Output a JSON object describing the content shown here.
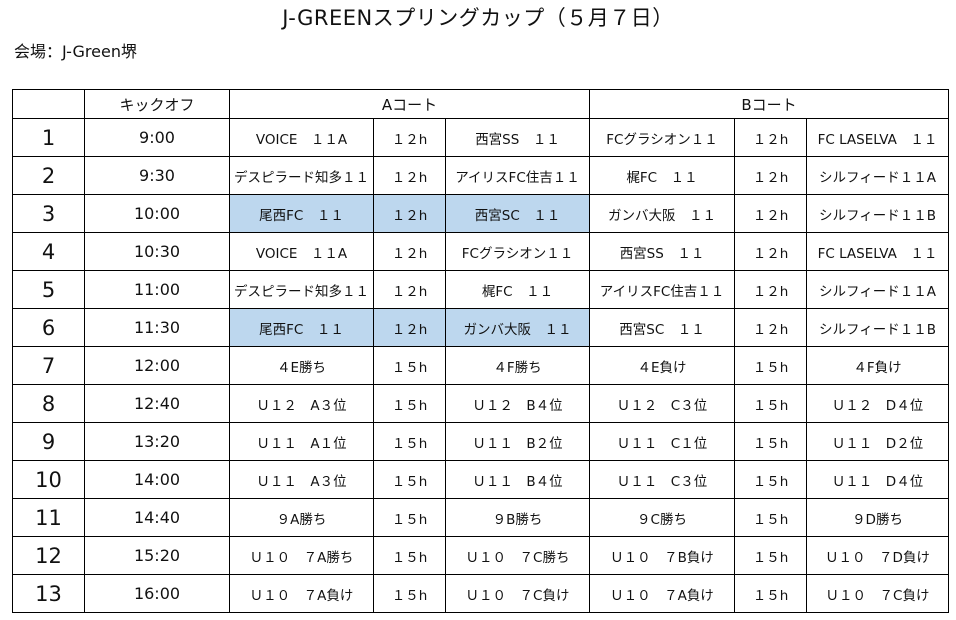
{
  "title": "J-GREENスプリングカップ（５月７日）",
  "venue": "会場：J-Green堺",
  "header": {
    "blank": "",
    "kickoff": "キックオフ",
    "court_a": "Aコート",
    "court_b": "Bコート"
  },
  "rows": [
    {
      "no": "1",
      "time": "9:00",
      "cells": [
        "VOICE　１１A",
        "１２h",
        "西宮SS　１１",
        "FCグラシオン１１",
        "１２h",
        "FC LASELVA　１１"
      ]
    },
    {
      "no": "2",
      "time": "9:30",
      "cells": [
        "デスピラード知多１１",
        "１２h",
        "アイリスFC住吉１１",
        "梶FC　１１",
        "１２h",
        "シルフィード１１A"
      ]
    },
    {
      "no": "3",
      "time": "10:00",
      "cells": [
        "尾西FC　１１",
        "１２h",
        "西宮SC　１１",
        "ガンバ大阪　１１",
        "１２h",
        "シルフィード１１B"
      ]
    },
    {
      "no": "4",
      "time": "10:30",
      "cells": [
        "VOICE　１１A",
        "１２h",
        "FCグラシオン１１",
        "西宮SS　１１",
        "１２h",
        "FC LASELVA　１１"
      ]
    },
    {
      "no": "5",
      "time": "11:00",
      "cells": [
        "デスピラード知多１１",
        "１２h",
        "梶FC　１１",
        "アイリスFC住吉１１",
        "１２h",
        "シルフィード１１A"
      ]
    },
    {
      "no": "6",
      "time": "11:30",
      "cells": [
        "尾西FC　１１",
        "１２h",
        "ガンバ大阪　１１",
        "西宮SC　１１",
        "１２h",
        "シルフィード１１B"
      ]
    },
    {
      "no": "7",
      "time": "12:00",
      "cells": [
        "４E勝ち",
        "１５h",
        "４F勝ち",
        "４E負け",
        "１５h",
        "４F負け"
      ]
    },
    {
      "no": "8",
      "time": "12:40",
      "cells": [
        "Ｕ１２　A３位",
        "１５h",
        "Ｕ１２　B４位",
        "Ｕ１２　C３位",
        "１５h",
        "Ｕ１２　D４位"
      ]
    },
    {
      "no": "9",
      "time": "13:20",
      "cells": [
        "Ｕ１１　A１位",
        "１５h",
        "Ｕ１１　B２位",
        "Ｕ１１　C１位",
        "１５h",
        "Ｕ１１　D２位"
      ]
    },
    {
      "no": "10",
      "time": "14:00",
      "cells": [
        "Ｕ１１　A３位",
        "１５h",
        "Ｕ１１　B４位",
        "Ｕ１１　C３位",
        "１５h",
        "Ｕ１１　D４位"
      ]
    },
    {
      "no": "11",
      "time": "14:40",
      "cells": [
        "９A勝ち",
        "１５h",
        "９B勝ち",
        "９C勝ち",
        "１５h",
        "９D勝ち"
      ]
    },
    {
      "no": "12",
      "time": "15:20",
      "cells": [
        "Ｕ１０　７A勝ち",
        "１５h",
        "Ｕ１０　７C勝ち",
        "Ｕ１０　７B負け",
        "１５h",
        "Ｕ１０　７D負け"
      ]
    },
    {
      "no": "13",
      "time": "16:00",
      "cells": [
        "Ｕ１０　７A負け",
        "１５h",
        "Ｕ１０　７C負け",
        "Ｕ１０　７A負け",
        "１５h",
        "Ｕ１０　７C負け"
      ]
    }
  ],
  "highlight_color": "#bdd7ee",
  "highlighted_rows": [
    3,
    6
  ],
  "highlighted_columns": [
    0,
    1,
    2
  ]
}
